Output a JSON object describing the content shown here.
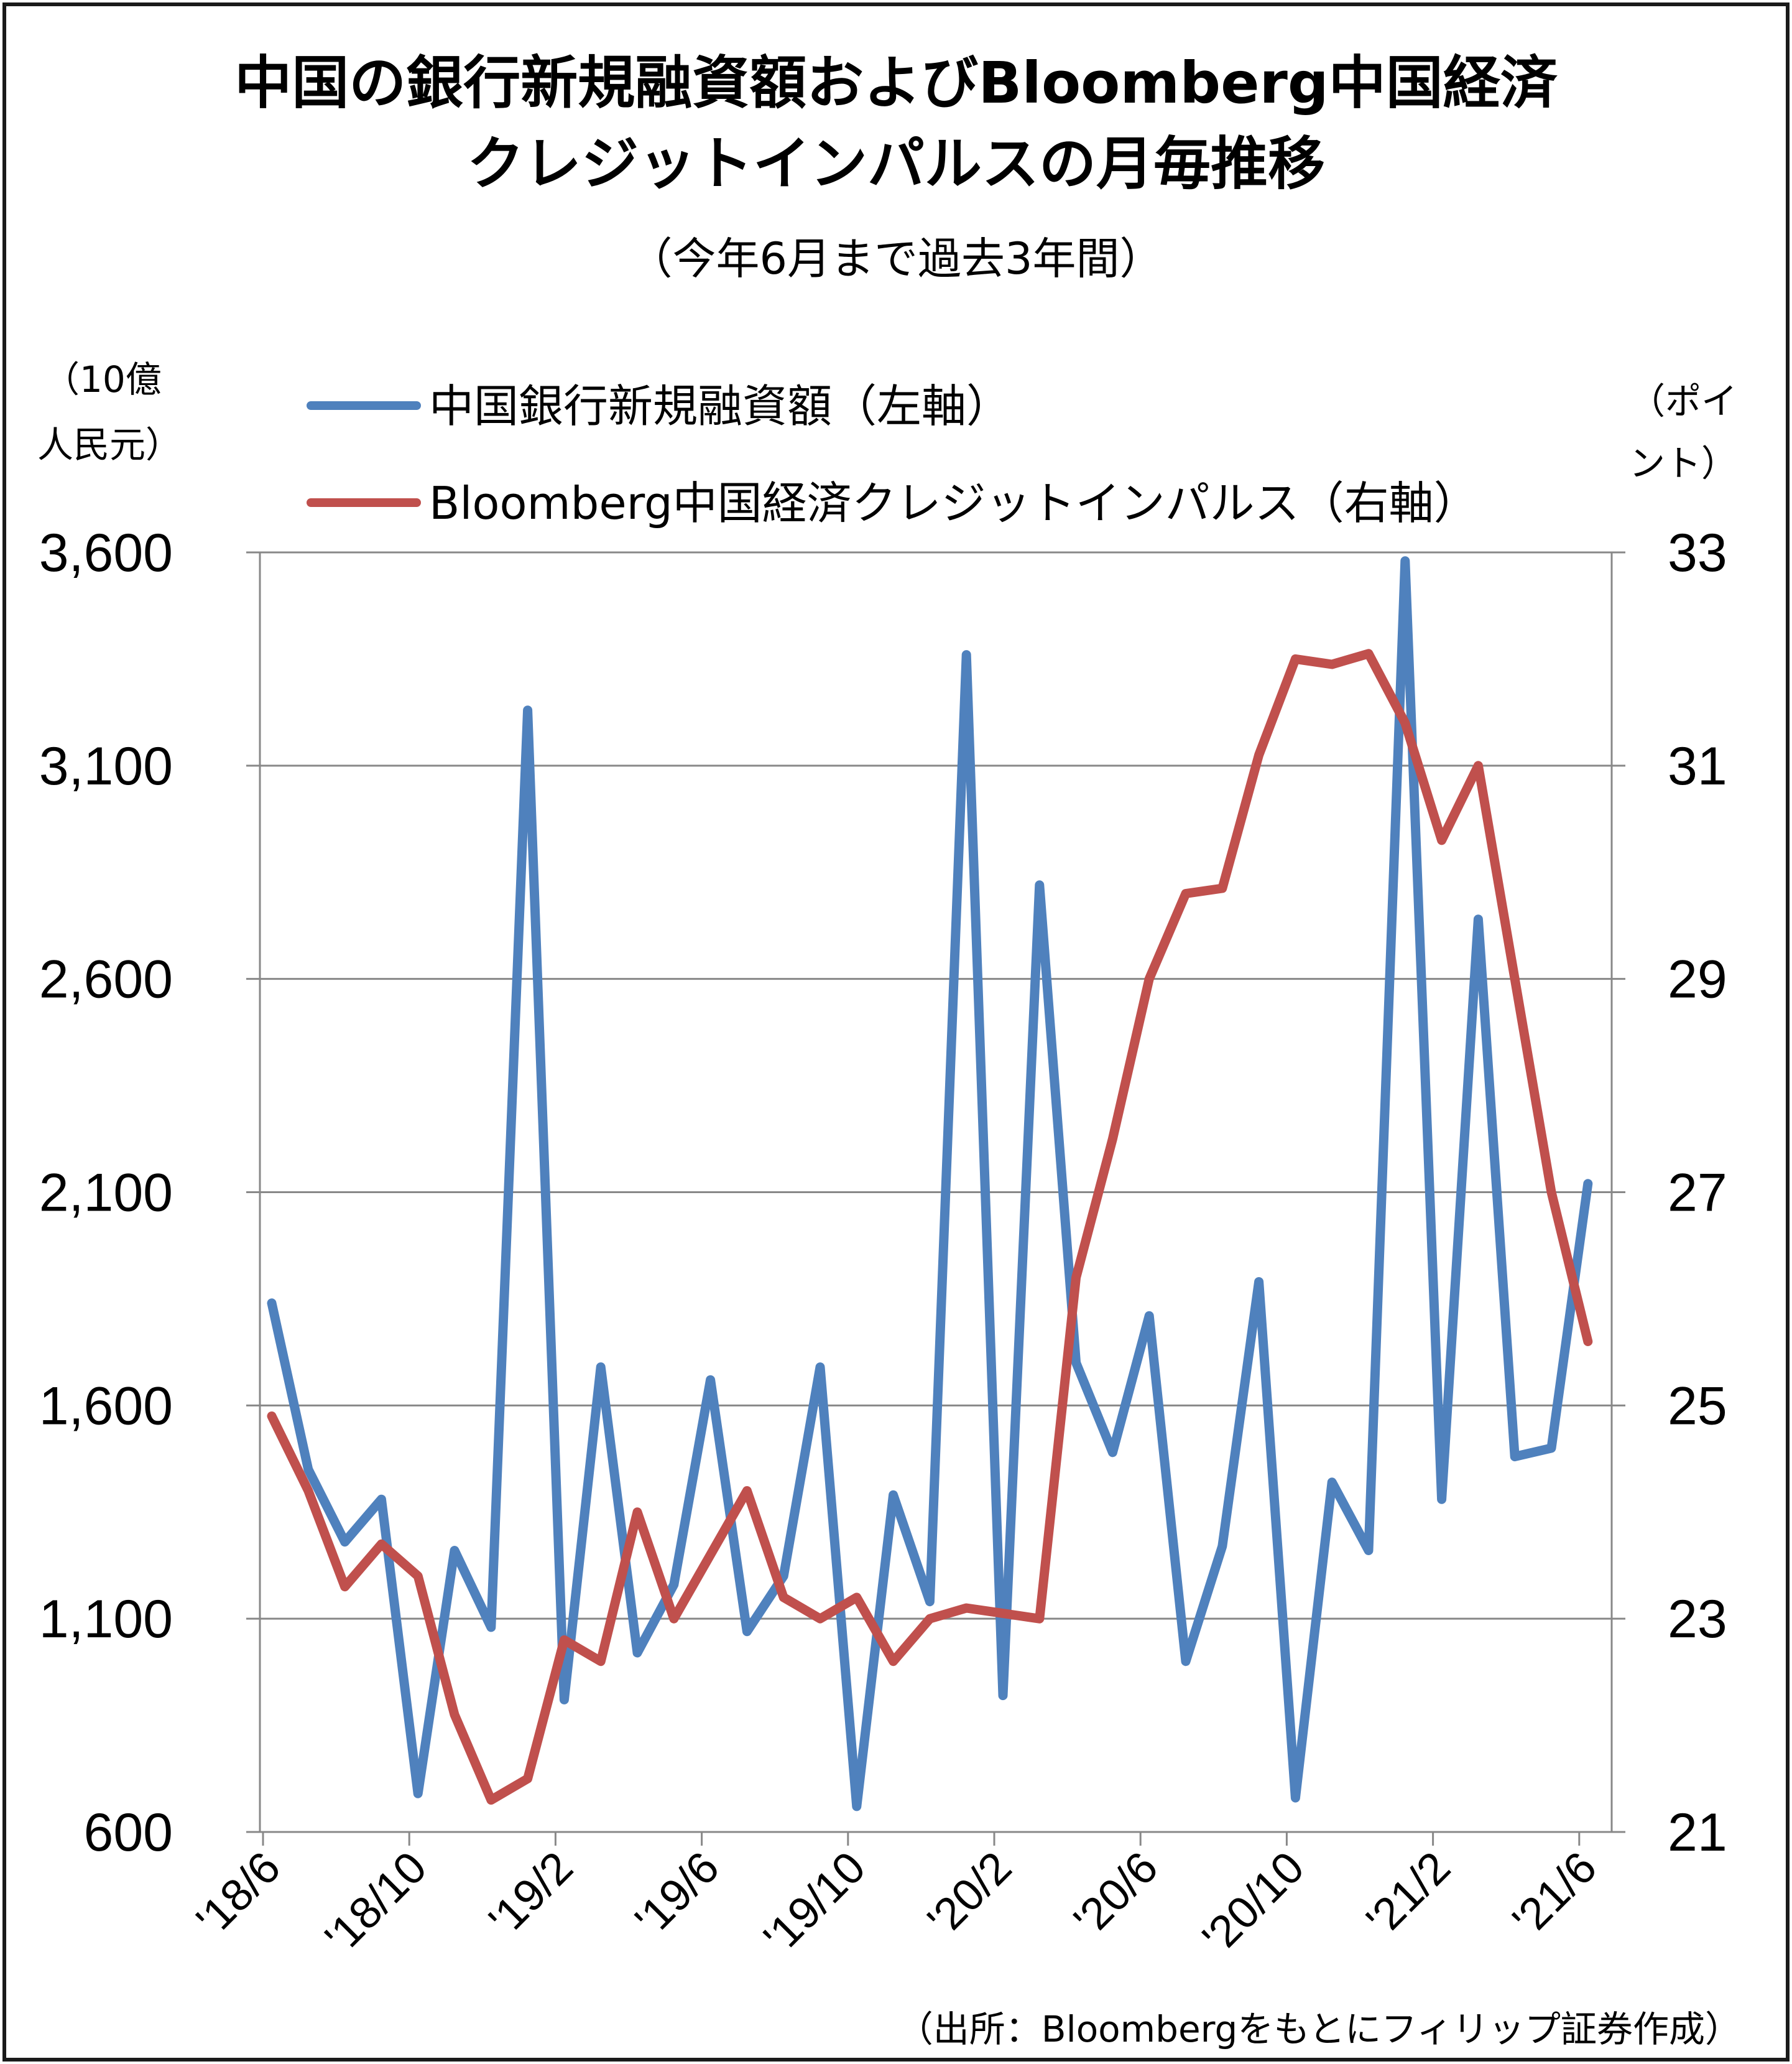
{
  "title_line1": "中国の銀行新規融資額およびBloomberg中国経済",
  "title_line2": "クレジットインパルスの月毎推移",
  "subtitle": "（今年6月まで過去3年間）",
  "left_unit_line1": "（10億",
  "left_unit_line2": "人民元）",
  "right_unit_line1": "（ポイ",
  "right_unit_line2": "ント）",
  "source": "（出所：Bloombergをもとにフィリップ証券作成）",
  "colors": {
    "loans": "#4F81BD",
    "impulse": "#C0504D",
    "grid": "#888888",
    "axis": "#888888"
  },
  "chart_data": {
    "type": "line",
    "title": "中国の銀行新規融資額およびBloomberg中国経済クレジットインパルスの月毎推移",
    "subtitle": "（今年6月まで過去3年間）",
    "x": [
      "'18/6",
      "'18/7",
      "'18/8",
      "'18/9",
      "'18/10",
      "'18/11",
      "'18/12",
      "'19/1",
      "'19/2",
      "'19/3",
      "'19/4",
      "'19/5",
      "'19/6",
      "'19/7",
      "'19/8",
      "'19/9",
      "'19/10",
      "'19/11",
      "'19/12",
      "'20/1",
      "'20/2",
      "'20/3",
      "'20/4",
      "'20/5",
      "'20/6",
      "'20/7",
      "'20/8",
      "'20/9",
      "'20/10",
      "'20/11",
      "'20/12",
      "'21/1",
      "'21/2",
      "'21/3",
      "'21/4",
      "'21/5",
      "'21/6"
    ],
    "x_tick_labels": [
      "'18/6",
      "'18/10",
      "'19/2",
      "'19/6",
      "'19/10",
      "'20/2",
      "'20/6",
      "'20/10",
      "'21/2",
      "'21/6"
    ],
    "x_tick_every": 4,
    "y_left": {
      "label": "（10億人民元）",
      "ylim": [
        600,
        3600
      ],
      "ticks": [
        "600",
        "1,100",
        "1,600",
        "2,100",
        "2,600",
        "3,100",
        "3,600"
      ],
      "tick_values": [
        600,
        1100,
        1600,
        2100,
        2600,
        3100,
        3600
      ]
    },
    "y_right": {
      "label": "（ポイント）",
      "ylim": [
        21,
        33
      ],
      "ticks": [
        "21",
        "23",
        "25",
        "27",
        "29",
        "31",
        "33"
      ],
      "tick_values": [
        21,
        23,
        25,
        27,
        29,
        31,
        33
      ]
    },
    "grid": true,
    "legend_position": "top",
    "series": [
      {
        "name": "中国銀行新規融資額（左軸）",
        "axis": "left",
        "values": [
          1840,
          1450,
          1280,
          1380,
          690,
          1260,
          1080,
          3230,
          910,
          1690,
          1020,
          1180,
          1660,
          1070,
          1200,
          1690,
          660,
          1390,
          1140,
          3360,
          920,
          2820,
          1700,
          1490,
          1810,
          1000,
          1270,
          1890,
          680,
          1420,
          1260,
          3580,
          1380,
          2740,
          1480,
          1500,
          2120
        ]
      },
      {
        "name": "Bloomberg中国経済クレジットインパルス（右軸）",
        "axis": "right",
        "values": [
          24.9,
          24.2,
          23.3,
          23.7,
          23.4,
          22.1,
          21.3,
          21.5,
          22.8,
          22.6,
          24.0,
          23.0,
          23.6,
          24.2,
          23.2,
          23.0,
          23.2,
          22.6,
          23.0,
          23.1,
          23.05,
          23.0,
          26.2,
          27.5,
          29.0,
          29.8,
          29.85,
          31.1,
          32.0,
          31.95,
          32.05,
          31.4,
          30.3,
          31.0,
          29.0,
          27.0,
          25.6
        ]
      }
    ]
  }
}
